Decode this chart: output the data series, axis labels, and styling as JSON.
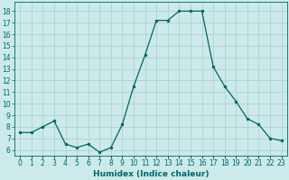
{
  "x": [
    0,
    1,
    2,
    3,
    4,
    5,
    6,
    7,
    8,
    9,
    10,
    11,
    12,
    13,
    14,
    15,
    16,
    17,
    18,
    19,
    20,
    21,
    22,
    23
  ],
  "y": [
    7.5,
    7.5,
    8.0,
    8.5,
    6.5,
    6.2,
    6.5,
    5.8,
    6.2,
    8.2,
    11.5,
    14.2,
    17.2,
    17.2,
    18.0,
    18.0,
    18.0,
    13.2,
    11.5,
    10.2,
    8.7,
    8.2,
    7.0,
    6.8
  ],
  "line_color": "#006666",
  "marker_color": "#006666",
  "bg_color": "#cceaea",
  "grid_color": "#aacccc",
  "xlabel": "Humidex (Indice chaleur)",
  "ylabel_ticks": [
    6,
    7,
    8,
    9,
    10,
    11,
    12,
    13,
    14,
    15,
    16,
    17,
    18
  ],
  "ylim": [
    5.5,
    18.8
  ],
  "xlim": [
    -0.5,
    23.5
  ],
  "figsize": [
    3.2,
    2.0
  ],
  "dpi": 100,
  "tick_fontsize": 5.5,
  "xlabel_fontsize": 6.5
}
